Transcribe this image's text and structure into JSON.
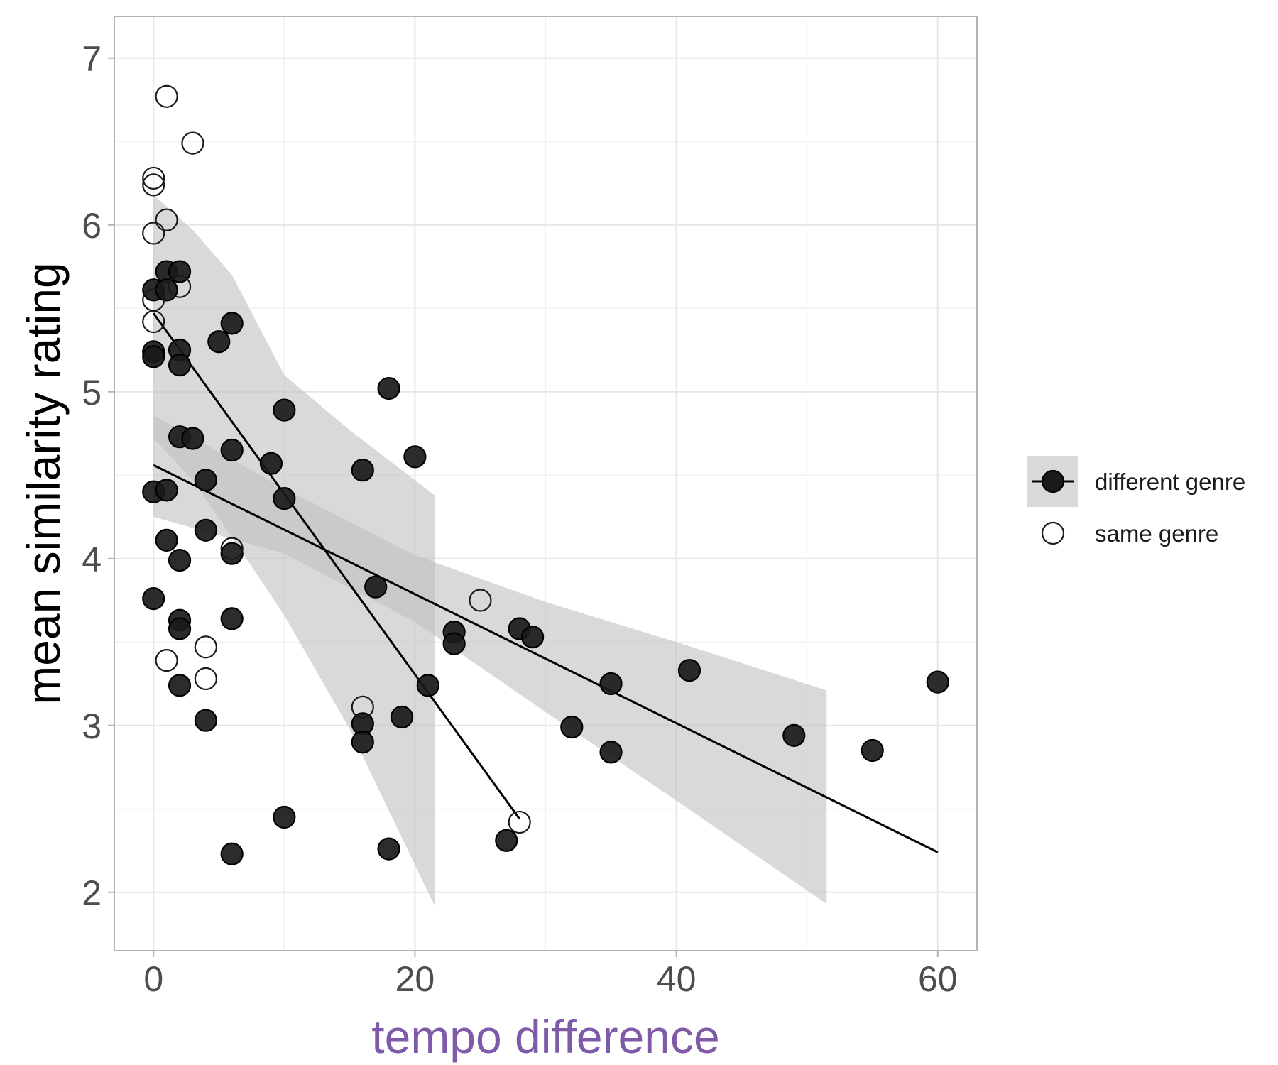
{
  "chart_data": {
    "type": "scatter",
    "xlabel": "tempo difference",
    "ylabel": "mean similarity rating",
    "xlim": [
      -3,
      63
    ],
    "ylim": [
      1.65,
      7.25
    ],
    "x_ticks": [
      "0",
      "20",
      "40",
      "60"
    ],
    "y_ticks": [
      "2",
      "3",
      "4",
      "5",
      "6",
      "7"
    ],
    "grid": true,
    "legend_position": "right",
    "colors": {
      "xlabel": "#7f5aa8",
      "ylabel": "#000000",
      "ribbon": "#bfbfbf",
      "point_fill": "#1a1a1a",
      "panel_border": "#b3b3b3",
      "grid": "#e6e6e6"
    },
    "series": [
      {
        "name": "different genre",
        "marker": "filled-circle",
        "points": [
          [
            0,
            5.61
          ],
          [
            0,
            5.24
          ],
          [
            0,
            5.21
          ],
          [
            0,
            4.4
          ],
          [
            0,
            3.76
          ],
          [
            1,
            5.72
          ],
          [
            1,
            5.61
          ],
          [
            1,
            4.41
          ],
          [
            1,
            4.11
          ],
          [
            2,
            5.72
          ],
          [
            2,
            5.25
          ],
          [
            2,
            5.16
          ],
          [
            2,
            4.73
          ],
          [
            2,
            3.99
          ],
          [
            2,
            3.63
          ],
          [
            2,
            3.58
          ],
          [
            2,
            3.24
          ],
          [
            3,
            4.72
          ],
          [
            4,
            4.47
          ],
          [
            4,
            4.17
          ],
          [
            4,
            3.03
          ],
          [
            5,
            5.3
          ],
          [
            6,
            5.41
          ],
          [
            6,
            4.65
          ],
          [
            6,
            4.03
          ],
          [
            6,
            3.64
          ],
          [
            6,
            2.23
          ],
          [
            9,
            4.57
          ],
          [
            10,
            4.89
          ],
          [
            10,
            4.36
          ],
          [
            10,
            2.45
          ],
          [
            16,
            4.53
          ],
          [
            16,
            3.01
          ],
          [
            16,
            2.9
          ],
          [
            17,
            3.83
          ],
          [
            18,
            5.02
          ],
          [
            18,
            2.26
          ],
          [
            19,
            3.05
          ],
          [
            20,
            4.61
          ],
          [
            21,
            3.24
          ],
          [
            23,
            3.56
          ],
          [
            23,
            3.49
          ],
          [
            27,
            2.31
          ],
          [
            28,
            3.58
          ],
          [
            29,
            3.53
          ],
          [
            32,
            2.99
          ],
          [
            35,
            3.25
          ],
          [
            35,
            2.84
          ],
          [
            41,
            3.33
          ],
          [
            49,
            2.94
          ],
          [
            55,
            2.85
          ],
          [
            60,
            3.26
          ]
        ],
        "fit": {
          "x": [
            0,
            60
          ],
          "y": [
            4.56,
            2.24
          ]
        },
        "ribbon": {
          "x": [
            0,
            10,
            20,
            30,
            40,
            51.5
          ],
          "upper": [
            4.86,
            4.42,
            4.02,
            3.74,
            3.5,
            3.21
          ],
          "lower": [
            4.25,
            4.03,
            3.62,
            3.08,
            2.55,
            1.93
          ]
        }
      },
      {
        "name": "same genre",
        "marker": "open-circle",
        "points": [
          [
            0,
            6.28
          ],
          [
            0,
            6.24
          ],
          [
            0,
            5.95
          ],
          [
            0,
            5.55
          ],
          [
            0,
            5.42
          ],
          [
            1,
            6.77
          ],
          [
            1,
            6.03
          ],
          [
            1,
            3.39
          ],
          [
            2,
            5.63
          ],
          [
            3,
            6.49
          ],
          [
            4,
            3.47
          ],
          [
            4,
            3.28
          ],
          [
            6,
            4.06
          ],
          [
            16,
            3.11
          ],
          [
            25,
            3.75
          ],
          [
            28,
            2.42
          ]
        ],
        "fit": {
          "x": [
            0,
            28
          ],
          "y": [
            5.47,
            2.44
          ]
        },
        "ribbon": {
          "x": [
            0,
            3,
            6,
            10,
            15,
            21.5
          ],
          "upper": [
            6.18,
            5.97,
            5.7,
            5.1,
            4.77,
            4.38
          ],
          "lower": [
            4.72,
            4.47,
            4.13,
            3.66,
            2.98,
            1.92
          ]
        }
      }
    ]
  }
}
